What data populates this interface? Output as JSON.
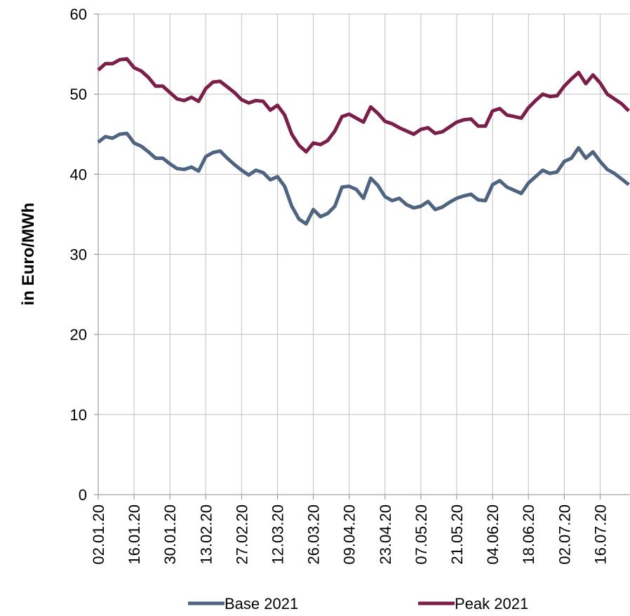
{
  "chart_data": {
    "type": "line",
    "y_label": "in Euro/MWh",
    "categories": [
      "02.01.20",
      null,
      null,
      null,
      null,
      "16.01.20",
      null,
      null,
      null,
      null,
      "30.01.20",
      null,
      null,
      null,
      null,
      "13.02.20",
      null,
      null,
      null,
      null,
      "27.02.20",
      null,
      null,
      null,
      null,
      "12.03.20",
      null,
      null,
      null,
      null,
      "26.03.20",
      null,
      null,
      null,
      null,
      "09.04.20",
      null,
      null,
      null,
      null,
      "23.04.20",
      null,
      null,
      null,
      null,
      "07.05.20",
      null,
      null,
      null,
      null,
      "21.05.20",
      null,
      null,
      null,
      null,
      "04.06.20",
      null,
      null,
      null,
      null,
      "18.06.20",
      null,
      null,
      null,
      null,
      "02.07.20",
      null,
      null,
      null,
      null,
      "16.07.20",
      null,
      null,
      null,
      null
    ],
    "series": [
      {
        "name": "Base 2021",
        "color": "#4f6480",
        "values": [
          44.0,
          44.7,
          44.5,
          45.0,
          45.1,
          43.9,
          43.5,
          42.8,
          42.0,
          42.0,
          41.3,
          40.7,
          40.6,
          40.9,
          40.4,
          42.2,
          42.7,
          42.9,
          42.0,
          41.2,
          40.5,
          39.9,
          40.5,
          40.2,
          39.3,
          39.7,
          38.5,
          36.0,
          34.4,
          33.8,
          35.6,
          34.7,
          35.1,
          36.0,
          38.4,
          38.5,
          38.1,
          37.0,
          39.5,
          38.6,
          37.2,
          36.7,
          37.0,
          36.2,
          35.8,
          36.0,
          36.6,
          35.6,
          35.9,
          36.5,
          37.0,
          37.3,
          37.5,
          36.8,
          36.7,
          38.7,
          39.2,
          38.4,
          38.0,
          37.6,
          38.9,
          39.7,
          40.5,
          40.1,
          40.3,
          41.6,
          42.0,
          43.3,
          42.0,
          42.8,
          41.6,
          40.6,
          40.1,
          39.4,
          38.7
        ]
      },
      {
        "name": "Peak 2021",
        "color": "#7b1f4a",
        "values": [
          53.0,
          53.8,
          53.8,
          54.3,
          54.4,
          53.3,
          52.9,
          52.1,
          51.0,
          51.0,
          50.2,
          49.4,
          49.2,
          49.6,
          49.1,
          50.7,
          51.5,
          51.6,
          50.9,
          50.2,
          49.3,
          48.9,
          49.2,
          49.1,
          48.0,
          48.6,
          47.4,
          45.0,
          43.6,
          42.8,
          43.9,
          43.7,
          44.2,
          45.4,
          47.2,
          47.5,
          47.0,
          46.5,
          48.4,
          47.6,
          46.6,
          46.3,
          45.8,
          45.4,
          45.0,
          45.6,
          45.8,
          45.1,
          45.3,
          45.9,
          46.5,
          46.8,
          46.9,
          46.0,
          46.0,
          47.9,
          48.2,
          47.4,
          47.2,
          47.0,
          48.3,
          49.2,
          50.0,
          49.7,
          49.8,
          51.0,
          51.9,
          52.7,
          51.3,
          52.4,
          51.4,
          50.0,
          49.4,
          48.8,
          47.9
        ]
      }
    ],
    "ylim": [
      0,
      60
    ],
    "yticks": [
      0,
      10,
      20,
      30,
      40,
      50,
      60
    ],
    "grid": true,
    "legend": "bottom"
  }
}
